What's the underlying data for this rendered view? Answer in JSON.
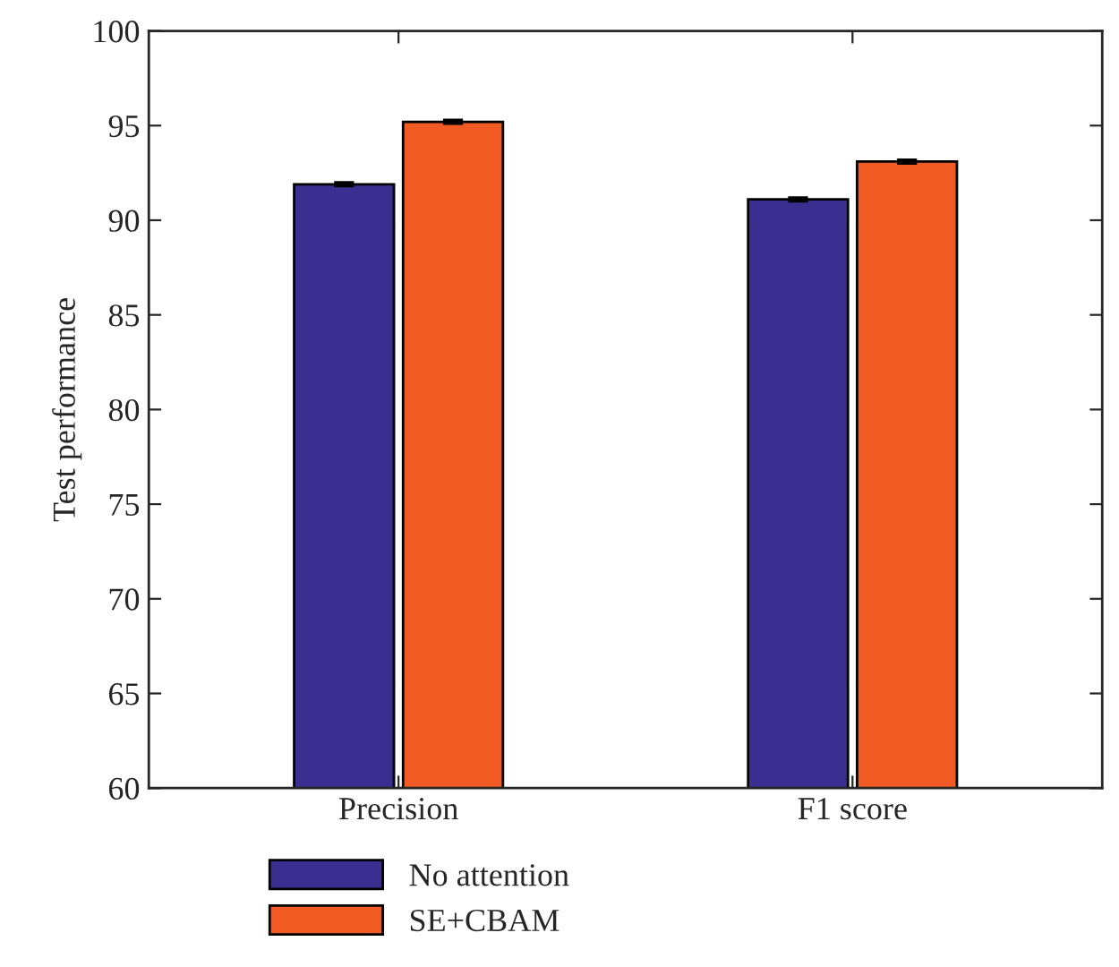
{
  "chart_data": {
    "type": "bar",
    "ylabel": "Test performance",
    "categories": [
      "Precision",
      "F1 score"
    ],
    "series": [
      {
        "name": "No attention",
        "color": "#3a2f91",
        "values": [
          91.9,
          91.1
        ],
        "errors": [
          0.1,
          0.1
        ]
      },
      {
        "name": "SE+CBAM",
        "color": "#f15a22",
        "values": [
          95.2,
          93.1
        ],
        "errors": [
          0.1,
          0.1
        ]
      }
    ],
    "ylim": [
      60,
      100
    ],
    "yticks": [
      60,
      65,
      70,
      75,
      80,
      85,
      90,
      95,
      100
    ],
    "grid": false,
    "legend": "bottom left"
  }
}
